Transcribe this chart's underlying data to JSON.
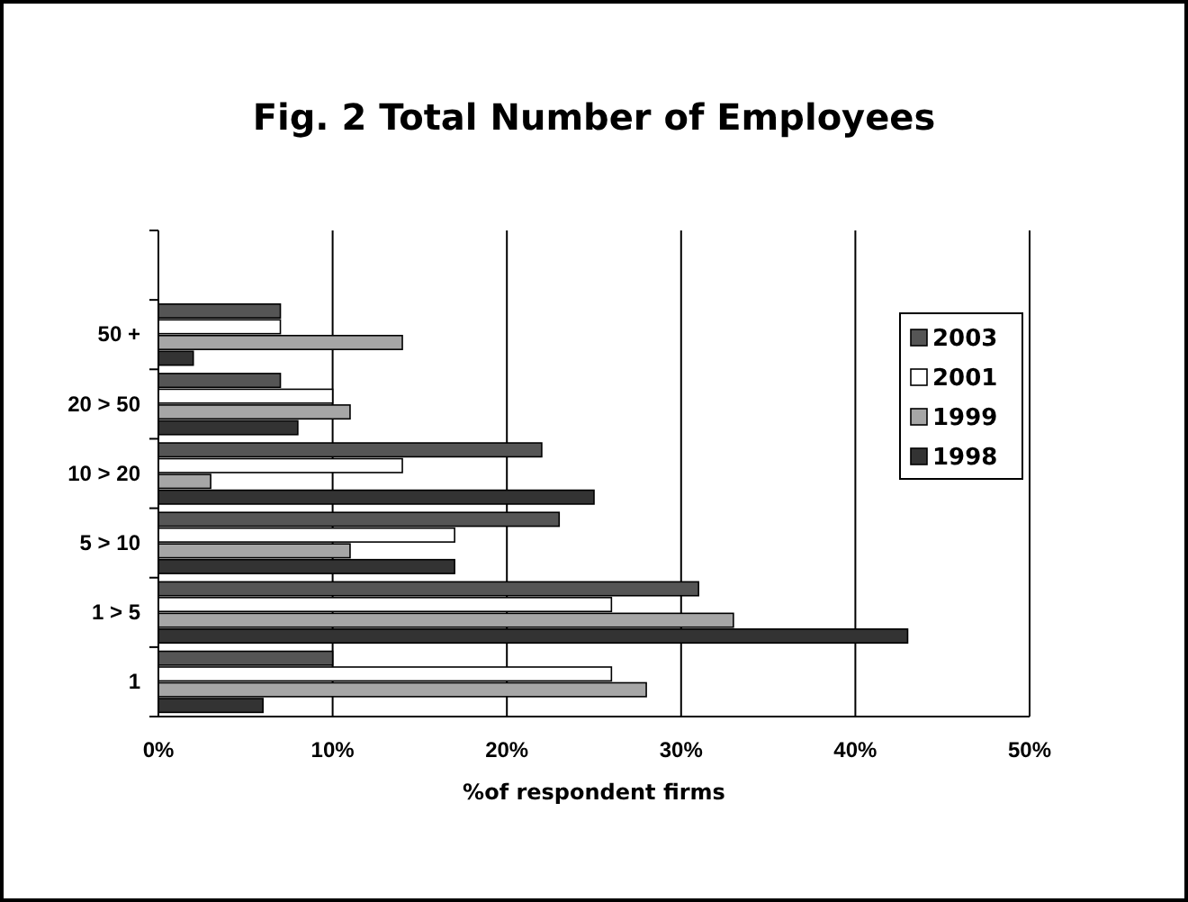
{
  "chart_data": {
    "type": "bar",
    "orientation": "horizontal",
    "title": "Fig. 2   Total Number of Employees",
    "xlabel": "%of respondent firms",
    "categories": [
      null,
      "50 +",
      "20 > 50",
      "10 > 20",
      "5 > 10",
      "1 > 5",
      "1"
    ],
    "series": [
      {
        "name": "2003",
        "color": "#555555",
        "values": [
          null,
          7,
          7,
          22,
          23,
          31,
          10
        ]
      },
      {
        "name": "2001",
        "color": "#ffffff",
        "values": [
          null,
          7,
          10,
          14,
          17,
          26,
          26
        ]
      },
      {
        "name": "1999",
        "color": "#a6a6a6",
        "values": [
          null,
          14,
          11,
          3,
          11,
          33,
          28
        ]
      },
      {
        "name": "1998",
        "color": "#333333",
        "values": [
          null,
          2,
          8,
          25,
          17,
          43,
          6
        ]
      }
    ],
    "xlim": [
      0,
      50
    ],
    "xticks": [
      {
        "value": 0,
        "label": "0%"
      },
      {
        "value": 10,
        "label": "10%"
      },
      {
        "value": 20,
        "label": "20%"
      },
      {
        "value": 30,
        "label": "30%"
      },
      {
        "value": 40,
        "label": "40%"
      },
      {
        "value": 50,
        "label": "50%"
      }
    ],
    "grid": "x",
    "legend": "top right"
  }
}
